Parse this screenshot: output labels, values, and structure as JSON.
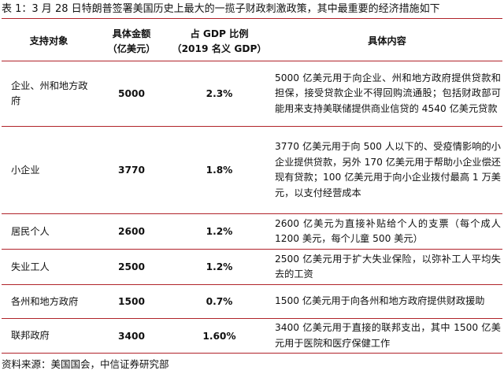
{
  "caption": "表 1：3 月 28 日特朗普签署美国历史上最大的一揽子财政刺激政策，其中最重要的经济措施如下",
  "table": {
    "headers": {
      "target": "支持对象",
      "amount_line1": "具体金额",
      "amount_line2": "（亿美元）",
      "gdp_line1": "占 GDP 比例",
      "gdp_line2": "（2019 名义 GDP）",
      "content": "具体内容"
    },
    "rows": [
      {
        "target": "企业、州和地方政府",
        "amount": "5000",
        "gdp_share": "2.3%",
        "content": "5000 亿美元用于向企业、州和地方政府提供贷款和担保，接受贷款企业不得回购流通股；包括财政部可能用来支持美联储提供商业信贷的 4540 亿美元贷款"
      },
      {
        "target": "小企业",
        "amount": "3770",
        "gdp_share": "1.8%",
        "content": "3770 亿美元用于向 500 人以下的、受疫情影响的小企业提供贷款，另外 170 亿美元用于帮助小企业偿还现有贷款；100 亿美元用于向小企业拨付最高 1 万美元，以支付经营成本"
      },
      {
        "target": "居民个人",
        "amount": "2600",
        "gdp_share": "1.2%",
        "content": "2600 亿美元为直接补贴给个人的支票（每个成人 1200 美元，每个儿童 500 美元）"
      },
      {
        "target": "失业工人",
        "amount": "2500",
        "gdp_share": "1.2%",
        "content": "2500 亿美元用于扩大失业保险，以弥补工人平均失去的工资"
      },
      {
        "target": "各州和地方政府",
        "amount": "1500",
        "gdp_share": "0.7%",
        "content": "1500 亿美元用于向各州和地方政府提供财政援助"
      },
      {
        "target": "联邦政府",
        "amount": "3400",
        "gdp_share": "1.60%",
        "content": "3400 亿美元用于直接的联邦支出，其中 1500 亿美元用于医院和医疗保健工作"
      }
    ]
  },
  "source": "资料来源：美国国会，中信证券研究部",
  "colors": {
    "rule": "#b0232a",
    "text": "#111111"
  }
}
